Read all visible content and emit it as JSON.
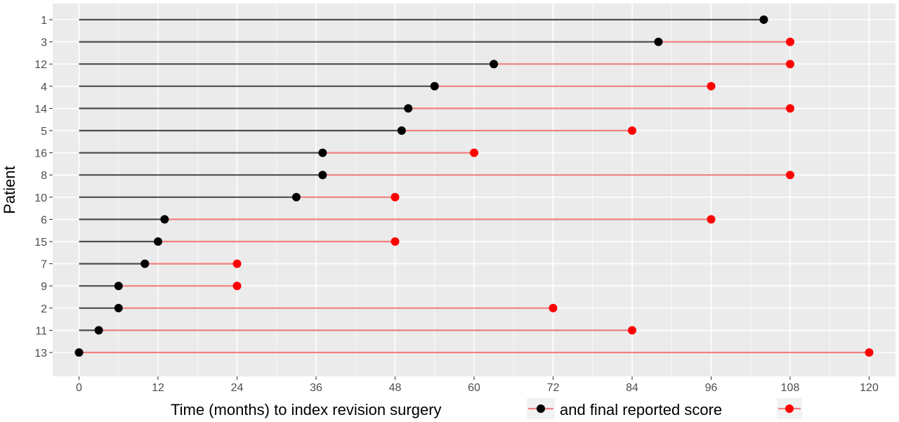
{
  "chart_data": {
    "type": "dumbbell",
    "ylabel": "Patient",
    "xlabel_parts": [
      "Time (months) to index revision surgery",
      "and final reported score"
    ],
    "xlim": [
      -4,
      124
    ],
    "xticks": [
      0,
      12,
      24,
      36,
      48,
      60,
      72,
      84,
      96,
      108,
      120
    ],
    "grid": true,
    "patients": [
      "1",
      "3",
      "12",
      "4",
      "14",
      "5",
      "16",
      "8",
      "10",
      "6",
      "15",
      "7",
      "9",
      "2",
      "11",
      "13"
    ],
    "revision_months": [
      104,
      88,
      63,
      54,
      50,
      49,
      37,
      37,
      33,
      13,
      12,
      10,
      6,
      6,
      3,
      0
    ],
    "final_score_months": [
      null,
      108,
      108,
      96,
      108,
      84,
      60,
      108,
      48,
      96,
      48,
      24,
      24,
      72,
      84,
      120
    ],
    "series": [
      {
        "key": "revision",
        "color": "#000000",
        "line_color": "#4d4d4d"
      },
      {
        "key": "final",
        "color": "#ff0000",
        "line_color": "#f08080"
      }
    ],
    "panel_color": "#ebebeb",
    "grid_color": "#ffffff"
  }
}
